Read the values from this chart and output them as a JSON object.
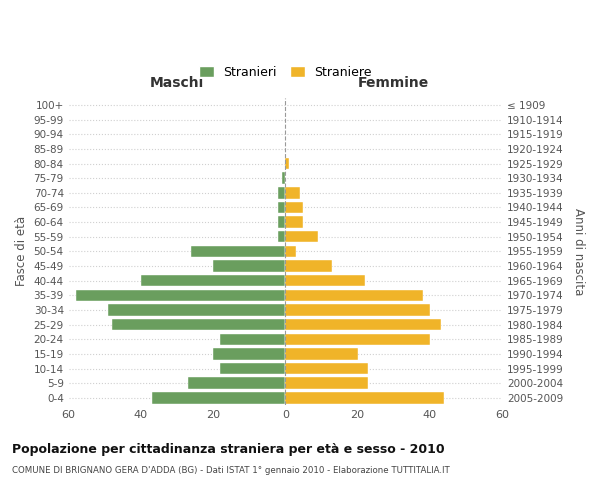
{
  "age_groups": [
    "0-4",
    "5-9",
    "10-14",
    "15-19",
    "20-24",
    "25-29",
    "30-34",
    "35-39",
    "40-44",
    "45-49",
    "50-54",
    "55-59",
    "60-64",
    "65-69",
    "70-74",
    "75-79",
    "80-84",
    "85-89",
    "90-94",
    "95-99",
    "100+"
  ],
  "birth_years": [
    "2005-2009",
    "2000-2004",
    "1995-1999",
    "1990-1994",
    "1985-1989",
    "1980-1984",
    "1975-1979",
    "1970-1974",
    "1965-1969",
    "1960-1964",
    "1955-1959",
    "1950-1954",
    "1945-1949",
    "1940-1944",
    "1935-1939",
    "1930-1934",
    "1925-1929",
    "1920-1924",
    "1915-1919",
    "1910-1914",
    "≤ 1909"
  ],
  "maschi": [
    37,
    27,
    18,
    20,
    18,
    48,
    49,
    58,
    40,
    20,
    26,
    2,
    2,
    2,
    2,
    1,
    0,
    0,
    0,
    0,
    0
  ],
  "femmine": [
    44,
    23,
    23,
    20,
    40,
    43,
    40,
    38,
    22,
    13,
    3,
    9,
    5,
    5,
    4,
    0,
    1,
    0,
    0,
    0,
    0
  ],
  "male_color": "#6a9e5e",
  "female_color": "#f0b429",
  "title": "Popolazione per cittadinanza straniera per età e sesso - 2010",
  "subtitle": "COMUNE DI BRIGNANO GERA D'ADDA (BG) - Dati ISTAT 1° gennaio 2010 - Elaborazione TUTTITALIA.IT",
  "xlabel_left": "Maschi",
  "xlabel_right": "Femmine",
  "ylabel_left": "Fasce di età",
  "ylabel_right": "Anni di nascita",
  "legend_male": "Stranieri",
  "legend_female": "Straniere",
  "xlim": 60,
  "background_color": "#ffffff",
  "grid_color": "#d0d0d0"
}
